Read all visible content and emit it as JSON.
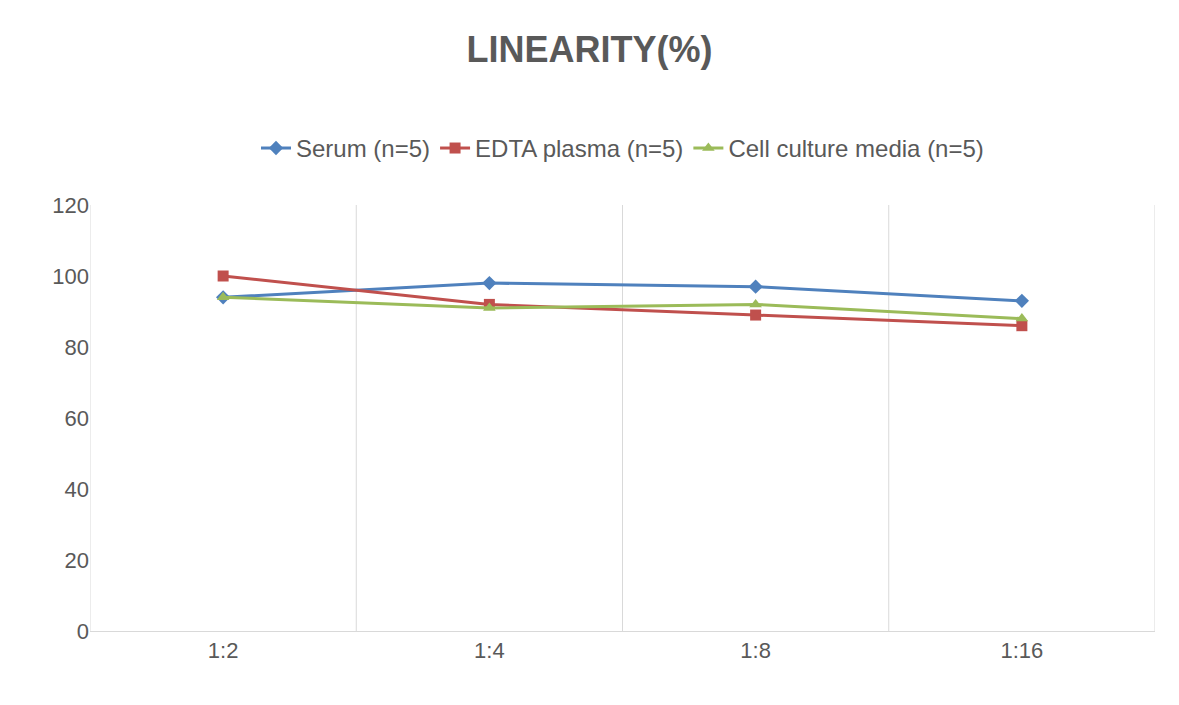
{
  "chart_data": {
    "type": "line",
    "title": "LINEARITY(%)",
    "categories": [
      "1:2",
      "1:4",
      "1:8",
      "1:16"
    ],
    "series": [
      {
        "name": "Serum (n=5)",
        "color": "#4f81bd",
        "marker": "diamond",
        "values": [
          94,
          98,
          97,
          93
        ]
      },
      {
        "name": "EDTA plasma (n=5)",
        "color": "#c0504d",
        "marker": "square",
        "values": [
          100,
          92,
          89,
          86
        ]
      },
      {
        "name": "Cell culture media (n=5)",
        "color": "#9bbb59",
        "marker": "triangle-up",
        "values": [
          94,
          91,
          92,
          88
        ]
      }
    ],
    "ylim": [
      0,
      120
    ],
    "yticks": [
      0,
      20,
      40,
      60,
      80,
      100,
      120
    ],
    "grid": true,
    "legend": "top"
  }
}
